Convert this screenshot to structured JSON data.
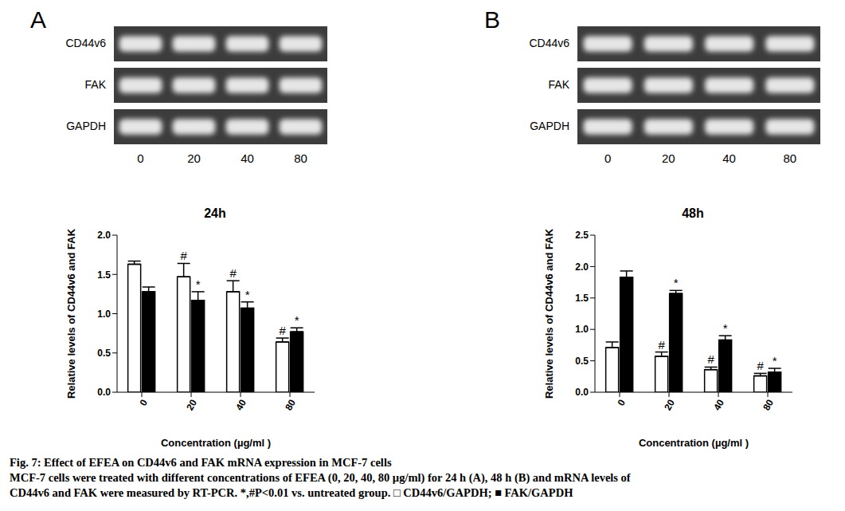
{
  "panels": [
    "A",
    "B"
  ],
  "gels": [
    {
      "rows": [
        "CD44v6",
        "FAK",
        "GAPDH"
      ],
      "lanes": [
        "0",
        "20",
        "40",
        "80"
      ]
    },
    {
      "rows": [
        "CD44v6",
        "FAK",
        "GAPDH"
      ],
      "lanes": [
        "0",
        "20",
        "40",
        "80"
      ]
    }
  ],
  "chart_data": [
    {
      "type": "bar",
      "title": "24h",
      "x_label": "Concentration (µg/ml )",
      "y_label": "Relative levels of CD44v6 and FAK",
      "categories": [
        "0",
        "20",
        "40",
        "80"
      ],
      "series": [
        {
          "name": "CD44v6",
          "color": "#ffffff",
          "values": [
            1.63,
            1.47,
            1.28,
            0.64
          ],
          "errors": [
            0.04,
            0.17,
            0.14,
            0.05
          ],
          "annotations": [
            null,
            "#",
            "#",
            "#"
          ]
        },
        {
          "name": "FAK",
          "color": "#000000",
          "values": [
            1.28,
            1.17,
            1.07,
            0.77
          ],
          "errors": [
            0.06,
            0.11,
            0.08,
            0.05
          ],
          "annotations": [
            null,
            "*",
            "*",
            "*"
          ]
        }
      ],
      "ylim": [
        0,
        2
      ],
      "yticks": [
        {
          "value": 0,
          "label": "0.0"
        },
        0.5,
        {
          "value": 1,
          "label": "1.0"
        },
        1.5,
        {
          "value": 2,
          "label": "2.0"
        }
      ]
    },
    {
      "type": "bar",
      "title": "48h",
      "x_label": "Concentration (µg/ml )",
      "y_label": "Relative levels of CD44v6 and FAK",
      "categories": [
        "0",
        "20",
        "40",
        "80"
      ],
      "series": [
        {
          "name": "CD44v6",
          "color": "#ffffff",
          "values": [
            0.71,
            0.57,
            0.36,
            0.26
          ],
          "errors": [
            0.09,
            0.07,
            0.04,
            0.04
          ],
          "annotations": [
            null,
            "#",
            "#",
            "#"
          ]
        },
        {
          "name": "FAK",
          "color": "#000000",
          "values": [
            1.83,
            1.57,
            0.83,
            0.32
          ],
          "errors": [
            0.1,
            0.05,
            0.07,
            0.06
          ],
          "annotations": [
            null,
            "*",
            "*",
            "*"
          ]
        }
      ],
      "ylim": [
        0,
        2.5
      ],
      "yticks": [
        {
          "value": 0,
          "label": "0.0"
        },
        0.5,
        {
          "value": 1,
          "label": "1.0"
        },
        1.5,
        {
          "value": 2,
          "label": "2.0"
        },
        2.5
      ]
    }
  ],
  "caption": {
    "title": "Fig. 7: Effect of EFEA on CD44v6 and FAK mRNA expression in MCF-7 cells",
    "lines": [
      "MCF-7 cells were treated with different concentrations of EFEA (0, 20, 40, 80 µg/ml) for 24 h (A), 48 h (B) and mRNA levels of",
      "CD44v6 and FAK were measured by RT-PCR. *,#P<0.01 vs. untreated group. □ CD44v6/GAPDH; ■ FAK/GAPDH"
    ]
  }
}
